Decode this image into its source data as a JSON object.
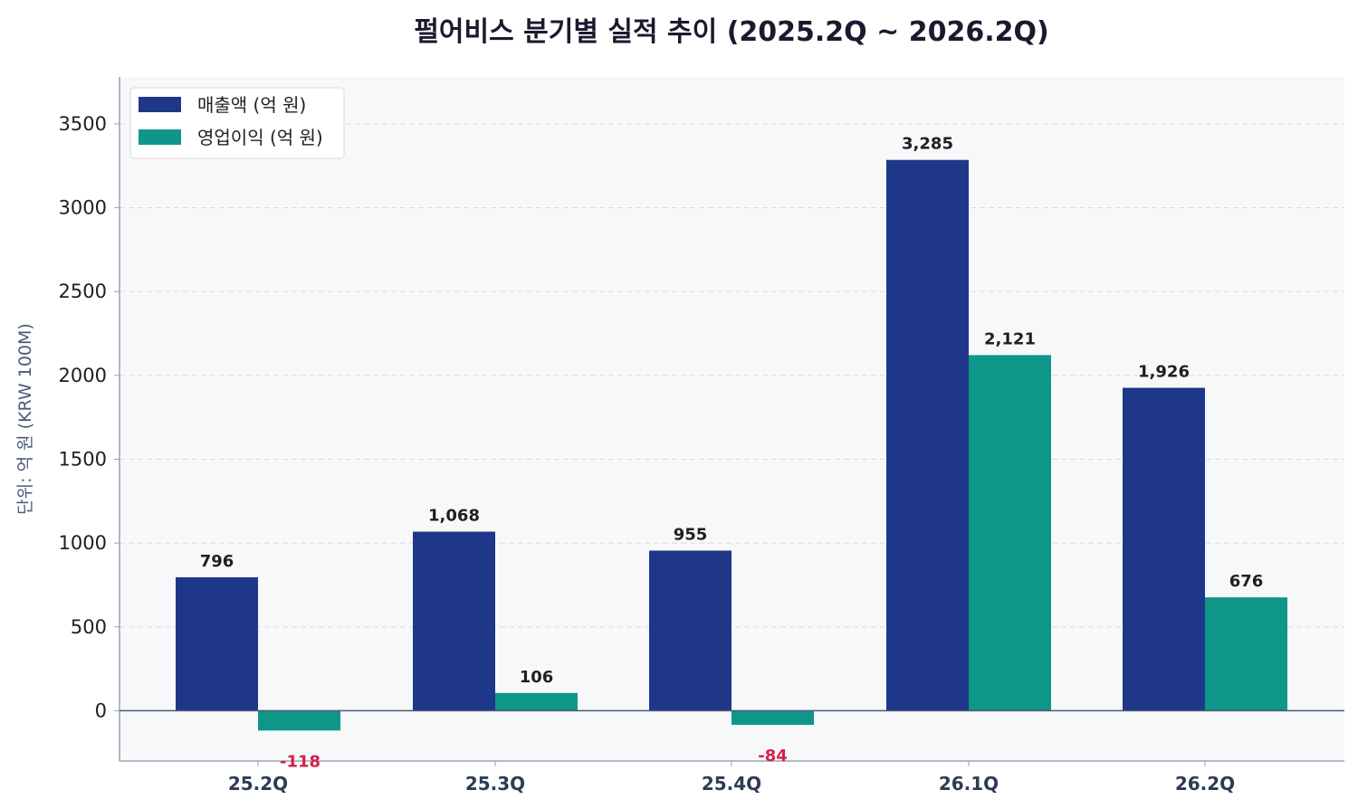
{
  "chart_data": {
    "type": "bar",
    "title": "펄어비스 분기별 실적 추이 (2025.2Q ~ 2026.2Q)",
    "ylabel": "단위: 억 원 (KRW 100M)",
    "xlabel": "",
    "categories": [
      "25.2Q",
      "25.3Q",
      "25.4Q",
      "26.1Q",
      "26.2Q"
    ],
    "series": [
      {
        "name": "매출액 (억 원)",
        "color": "#1f3788",
        "values": [
          796,
          1068,
          955,
          3285,
          1926
        ],
        "labels": [
          "796",
          "1,068",
          "955",
          "3,285",
          "1,926"
        ]
      },
      {
        "name": "영업이익 (억 원)",
        "color": "#0e9688",
        "values": [
          -118,
          106,
          -84,
          2121,
          676
        ],
        "labels": [
          "-118",
          "106",
          "-84",
          "2,121",
          "676"
        ]
      }
    ],
    "ylim": [
      -300,
      3780
    ],
    "yticks": [
      0,
      500,
      1000,
      1500,
      2000,
      2500,
      3000,
      3500
    ],
    "grid": true,
    "legend_position": "top-left",
    "negative_label_color": "#d6204a"
  }
}
